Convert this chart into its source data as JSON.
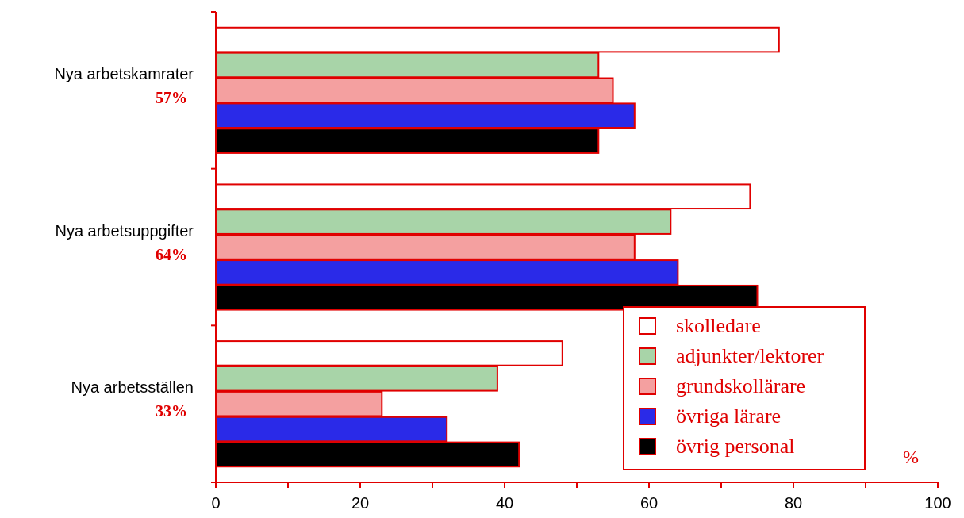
{
  "chart_data": {
    "type": "bar",
    "orientation": "horizontal",
    "categories": [
      "Nya arbetskamrater",
      "Nya arbetsuppgifter",
      "Nya arbetsställen"
    ],
    "series": [
      {
        "name": "skolledare",
        "color": "#ffffff",
        "values": [
          78,
          74,
          48
        ]
      },
      {
        "name": "adjunkter/lektorer",
        "color": "#a8d4a8",
        "values": [
          53,
          63,
          39
        ]
      },
      {
        "name": "grundskollärare",
        "color": "#f4a0a0",
        "values": [
          55,
          58,
          23
        ]
      },
      {
        "name": "övriga lärare",
        "color": "#2a2ae8",
        "values": [
          58,
          64,
          32
        ]
      },
      {
        "name": "övrig personal",
        "color": "#000000",
        "values": [
          53,
          75,
          42
        ]
      }
    ],
    "xlim": [
      0,
      100
    ],
    "xticks": [
      0,
      {
        "value": 10,
        "label": null
      },
      20,
      {
        "value": 30,
        "label": null
      },
      40,
      {
        "value": 50,
        "label": null
      },
      60,
      {
        "value": 70,
        "label": null
      },
      80,
      {
        "value": 90,
        "label": null
      },
      100
    ],
    "xlabel": "%",
    "annotations": [
      "57%",
      "64%",
      "33%"
    ],
    "legend": "bottom right",
    "grid": false
  }
}
